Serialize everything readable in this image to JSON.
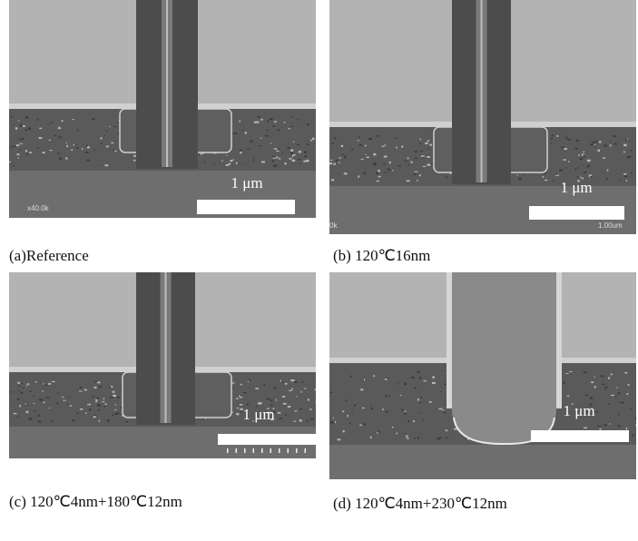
{
  "panels": [
    {
      "caption": "(a)Reference",
      "scale_label": "1 μm",
      "corner_labels": [
        "x40.0k"
      ]
    },
    {
      "caption": "(b) 120℃16nm",
      "scale_label": "1 μm",
      "corner_labels": [
        "0k",
        "1.00um"
      ]
    },
    {
      "caption": "(c) 120℃4nm+180℃12nm",
      "scale_label": "1 μm",
      "corner_labels": []
    },
    {
      "caption": "(d) 120℃4nm+230℃12nm",
      "scale_label": "1 μm",
      "corner_labels": []
    }
  ]
}
